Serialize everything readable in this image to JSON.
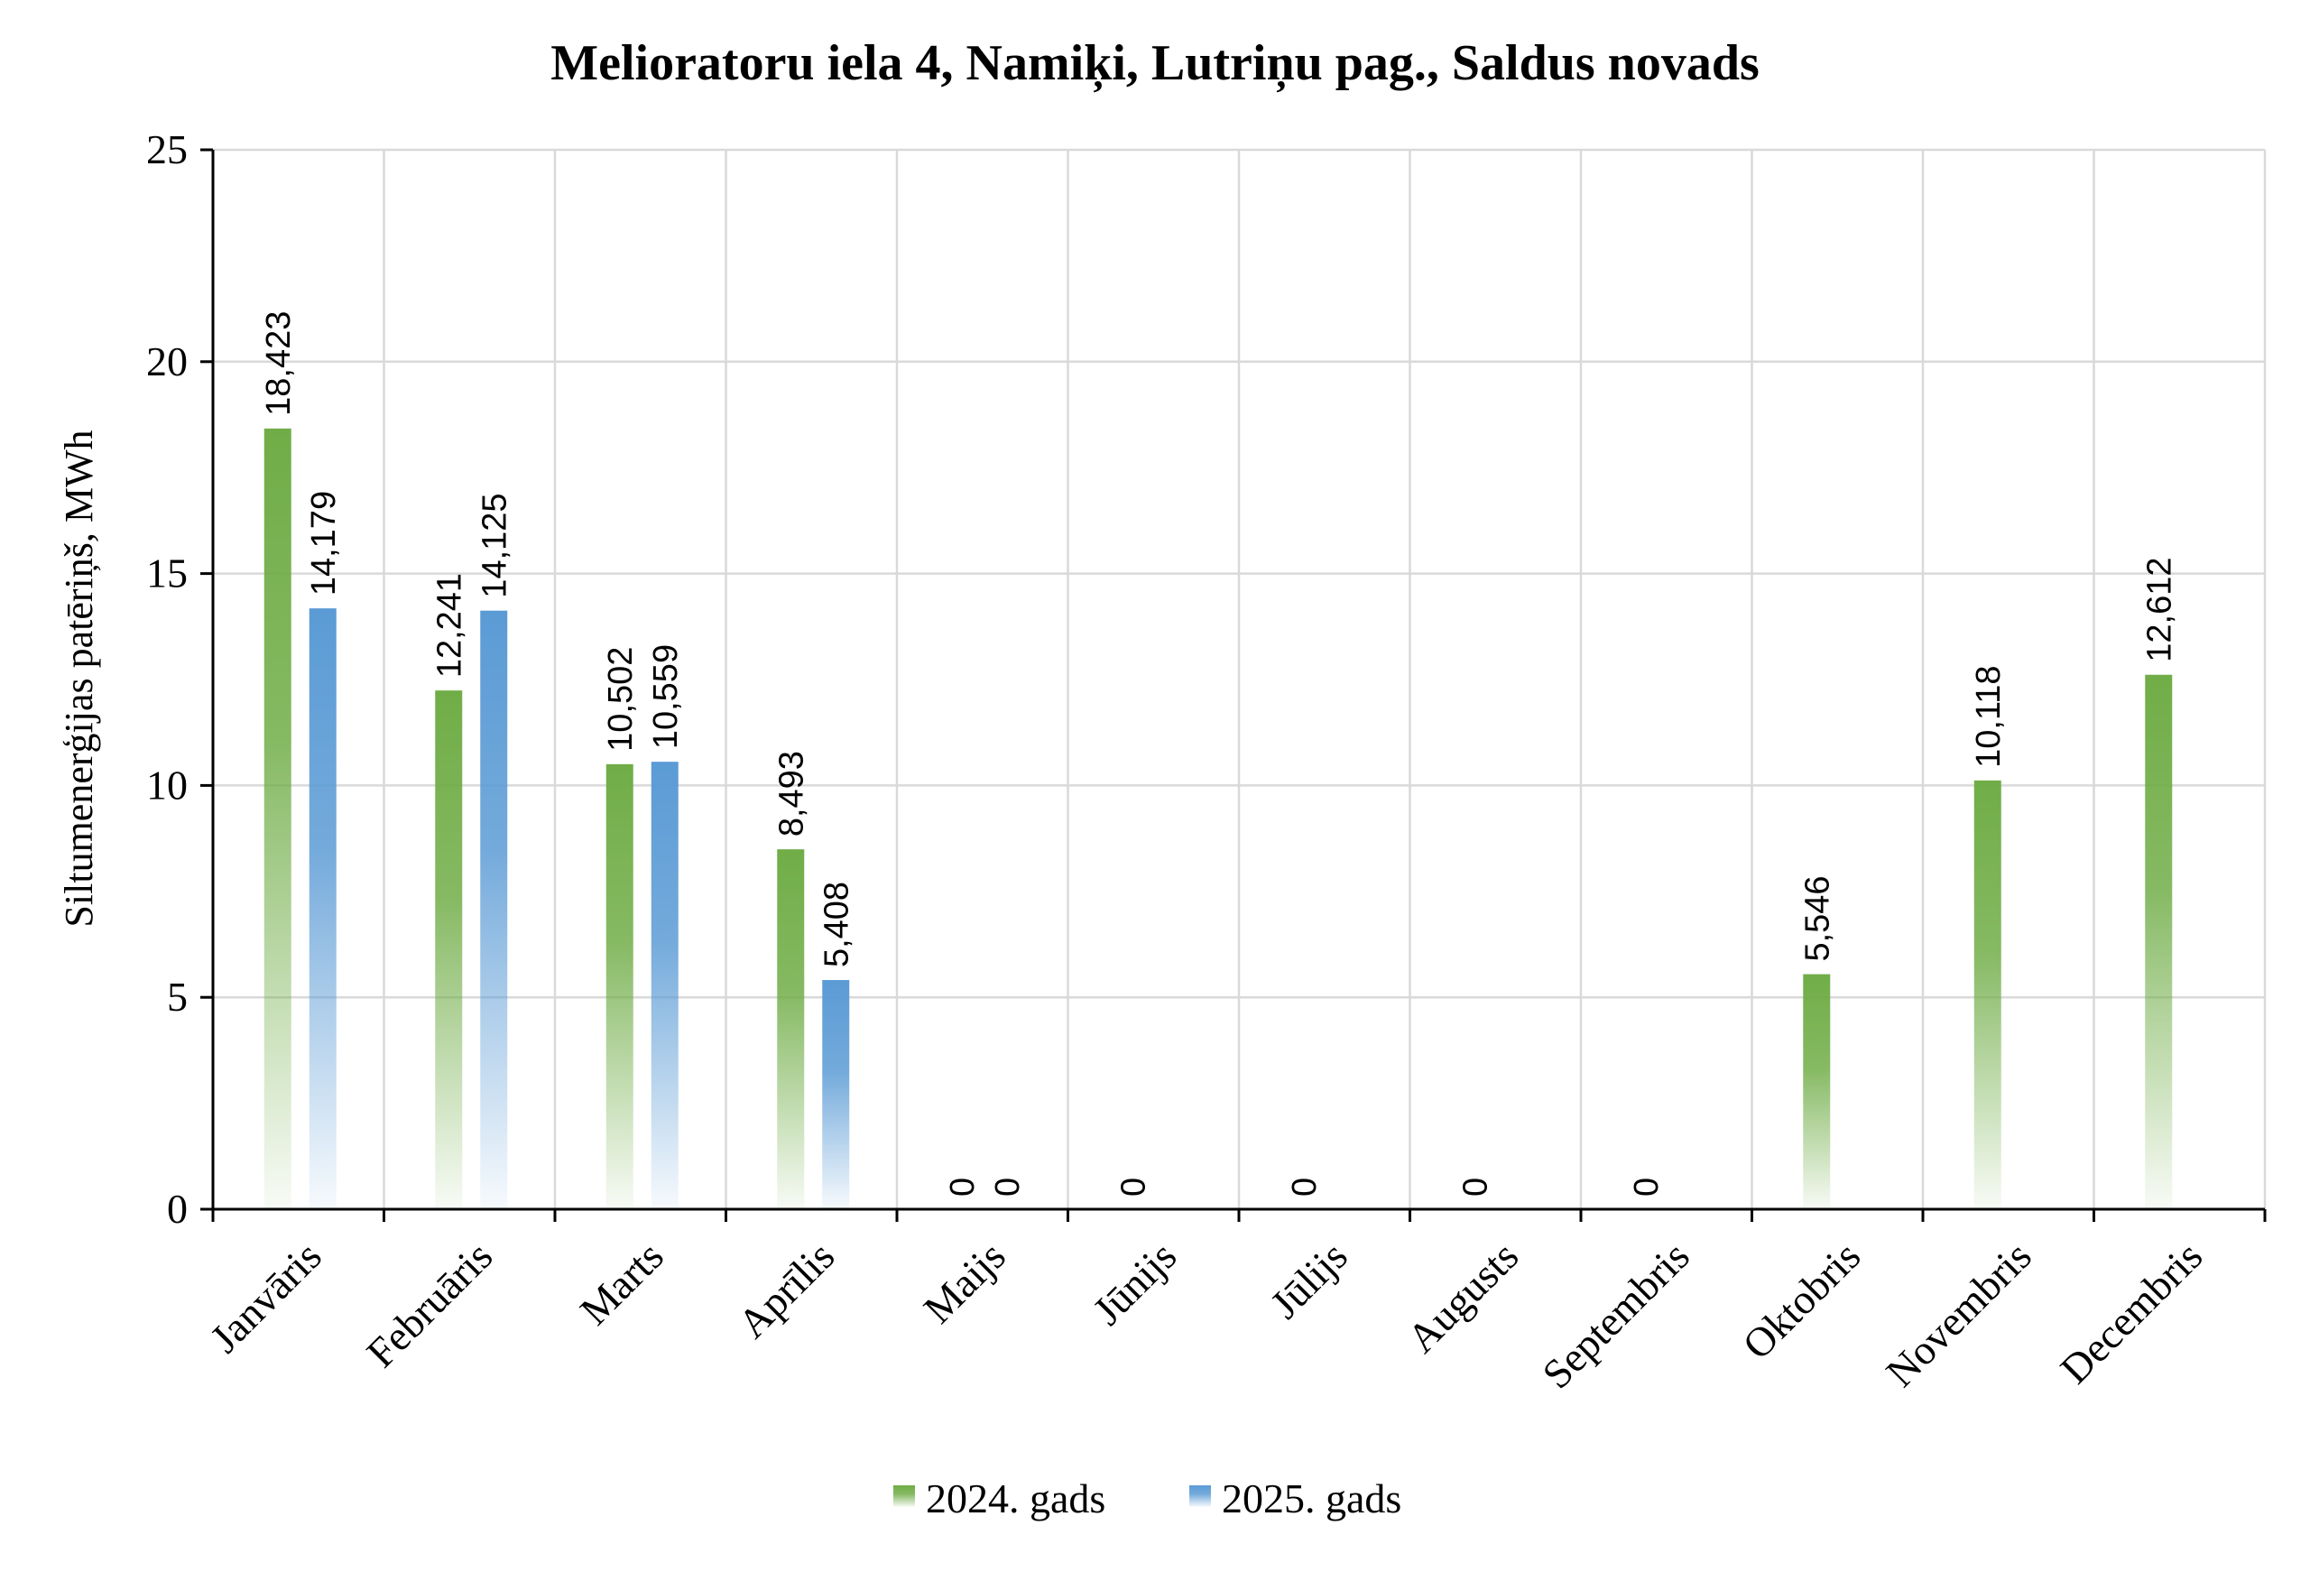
{
  "chart_data": {
    "type": "bar",
    "title": "Melioratoru iela 4, Namiķi, Lutriņu pag., Saldus novads",
    "xlabel": "",
    "ylabel": "Siltumenerģijas patēriņš, MWh",
    "ylim": [
      0,
      25
    ],
    "yticks": [
      "0",
      "5",
      "10",
      "15",
      "20",
      "25"
    ],
    "categories": [
      "Janvāris",
      "Februāris",
      "Marts",
      "Aprīlis",
      "Maijs",
      "Jūnijs",
      "Jūlijs",
      "Augusts",
      "Septembris",
      "Oktobris",
      "Novembris",
      "Decembris"
    ],
    "series": [
      {
        "name": "2024. gads",
        "color": "#70ad47",
        "values": [
          18.423,
          12.241,
          10.502,
          8.493,
          0,
          0,
          0,
          0,
          0,
          5.546,
          10.118,
          12.612
        ],
        "labels": [
          "18,423",
          "12,241",
          "10,502",
          "8,493",
          "0",
          "0",
          "0",
          "0",
          "0",
          "5,546",
          "10,118",
          "12,612"
        ]
      },
      {
        "name": "2025. gads",
        "color": "#5b9bd5",
        "values": [
          14.179,
          14.125,
          10.559,
          5.408,
          0,
          null,
          null,
          null,
          null,
          null,
          null,
          null
        ],
        "labels": [
          "14,179",
          "14,125",
          "10,559",
          "5,408",
          "0",
          null,
          null,
          null,
          null,
          null,
          null,
          null
        ]
      }
    ],
    "grid": true,
    "legend_position": "bottom"
  }
}
